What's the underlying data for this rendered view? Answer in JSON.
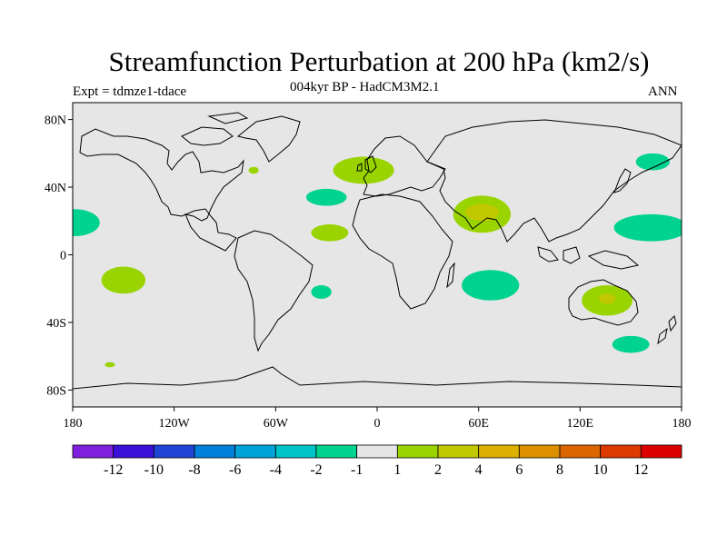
{
  "header": {
    "title": "Streamfunction Perturbation at 200 hPa (km2/s)",
    "subtitle": "004kyr BP - HadCM3M2.1",
    "experiment": "Expt = tdmze1-tdace",
    "season": "ANN"
  },
  "map": {
    "projection": "cylindrical equidistant",
    "lon_range": [
      -180,
      180
    ],
    "lat_range": [
      -90,
      90
    ],
    "background_color": "#e6e6e6",
    "lat_ticks": [
      {
        "value": 80,
        "label": "80N"
      },
      {
        "value": 40,
        "label": "40N"
      },
      {
        "value": 0,
        "label": "0"
      },
      {
        "value": -40,
        "label": "40S"
      },
      {
        "value": -80,
        "label": "80S"
      }
    ],
    "lon_ticks": [
      {
        "value": -180,
        "label": "180"
      },
      {
        "value": -120,
        "label": "120W"
      },
      {
        "value": -60,
        "label": "60W"
      },
      {
        "value": 0,
        "label": "0"
      },
      {
        "value": 60,
        "label": "60E"
      },
      {
        "value": 120,
        "label": "120E"
      },
      {
        "value": 180,
        "label": "180"
      }
    ],
    "anomaly_regions": [
      {
        "name": "north-atlantic-positive",
        "lon": -8,
        "lat": 50,
        "rlon": 18,
        "rlat": 8,
        "category": "1 to 2"
      },
      {
        "name": "east-asia-negative",
        "lon": 163,
        "lat": 55,
        "rlon": 10,
        "rlat": 5,
        "category": "-2 to -1"
      },
      {
        "name": "subtropical-atlantic-north-negative",
        "lon": -30,
        "lat": 34,
        "rlon": 12,
        "rlat": 5,
        "category": "-2 to -1"
      },
      {
        "name": "tropical-atlantic-north-positive",
        "lon": -28,
        "lat": 13,
        "rlon": 11,
        "rlat": 5,
        "category": "1 to 2"
      },
      {
        "name": "arabian-positive",
        "lon": 62,
        "lat": 24,
        "rlon": 17,
        "rlat": 11,
        "category": "1 to 2"
      },
      {
        "name": "arabian-core",
        "lon": 62,
        "lat": 25,
        "rlon": 10,
        "rlat": 5,
        "category": "2 to 4"
      },
      {
        "name": "central-pacific-north-negative",
        "lon": -179,
        "lat": 19,
        "rlon": 15,
        "rlat": 8,
        "category": "-2 to -1"
      },
      {
        "name": "west-pacific-negative",
        "lon": 162,
        "lat": 16,
        "rlon": 22,
        "rlat": 8,
        "category": "-2 to -1"
      },
      {
        "name": "south-pacific-positive",
        "lon": -150,
        "lat": -15,
        "rlon": 13,
        "rlat": 8,
        "category": "1 to 2"
      },
      {
        "name": "south-indian-negative",
        "lon": 67,
        "lat": -18,
        "rlon": 17,
        "rlat": 9,
        "category": "-2 to -1"
      },
      {
        "name": "south-atlantic-negative",
        "lon": -33,
        "lat": -22,
        "rlon": 6,
        "rlat": 4,
        "category": "-2 to -1"
      },
      {
        "name": "australia-positive",
        "lon": 136,
        "lat": -27,
        "rlon": 15,
        "rlat": 9,
        "category": "1 to 2"
      },
      {
        "name": "australia-core",
        "lon": 136,
        "lat": -26,
        "rlon": 5,
        "rlat": 3,
        "category": "2 to 4"
      },
      {
        "name": "southern-ocean-negative",
        "lon": 150,
        "lat": -53,
        "rlon": 11,
        "rlat": 5,
        "category": "-2 to -1"
      },
      {
        "name": "north-america-small-positive",
        "lon": -73,
        "lat": 50,
        "rlon": 3,
        "rlat": 2,
        "category": "1 to 2"
      },
      {
        "name": "south-pacific-small-positive",
        "lon": -158,
        "lat": -65,
        "rlon": 3,
        "rlat": 1.5,
        "category": "1 to 2"
      }
    ]
  },
  "colorbar": {
    "labels": [
      "-12",
      "-10",
      "-8",
      "-6",
      "-4",
      "-2",
      "-1",
      "1",
      "2",
      "4",
      "6",
      "8",
      "10",
      "12"
    ],
    "colors": [
      "#7f20dd",
      "#3b10d8",
      "#1f44d6",
      "#0080db",
      "#00a2d8",
      "#00c3c8",
      "#00d38f",
      "#e5e5e5",
      "#99d400",
      "#c2c800",
      "#dcb000",
      "#dd8f00",
      "#dd6500",
      "#dd3a00",
      "#dd0000"
    ]
  }
}
